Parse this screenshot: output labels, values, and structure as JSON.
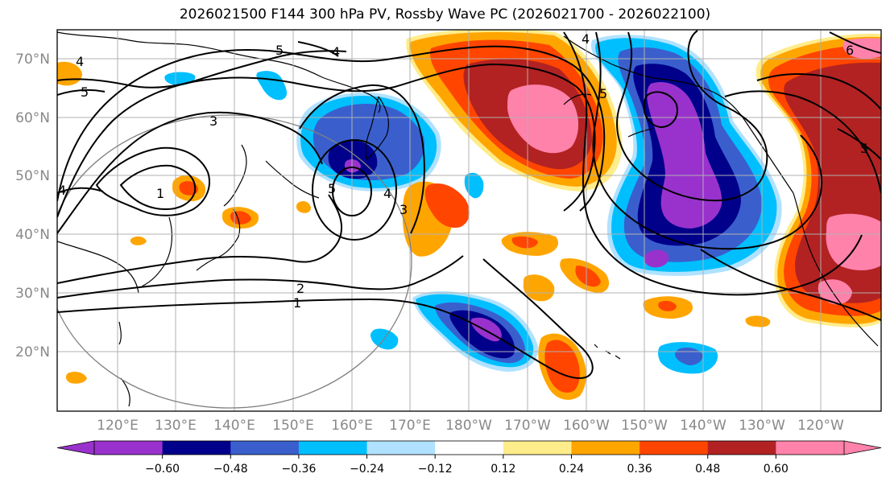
{
  "title": "2026021500 F144 300 hPa PV, Rossby Wave PC (2026021700 - 2026022100)",
  "latitude_labels": [
    "70°N",
    "60°N",
    "50°N",
    "40°N",
    "30°N",
    "20°N"
  ],
  "longitude_labels": [
    "120°E",
    "130°E",
    "140°E",
    "150°E",
    "160°E",
    "170°E",
    "180°W",
    "170°W",
    "160°W",
    "150°W",
    "140°W",
    "130°W",
    "120°W"
  ],
  "colorbar": {
    "tick_labels": [
      "−0.60",
      "−0.48",
      "−0.36",
      "−0.24",
      "−0.12",
      "0.12",
      "0.24",
      "0.36",
      "0.48",
      "0.60"
    ],
    "colors": [
      "#9932cc",
      "#00008b",
      "#3a5fcd",
      "#00bfff",
      "#b0e2ff",
      "#ffffff",
      "#ffec8b",
      "#ffa500",
      "#ff4500",
      "#b22222",
      "#ff82ab"
    ]
  },
  "contour_labels": [
    "4",
    "5",
    "4",
    "5",
    "3",
    "1",
    "5",
    "4",
    "3",
    "2",
    "1",
    "4",
    "5",
    "6",
    "5",
    "4"
  ],
  "colors": {
    "grid": "#b0b0b0",
    "tick_text": "#888888",
    "contour": "#000000"
  }
}
